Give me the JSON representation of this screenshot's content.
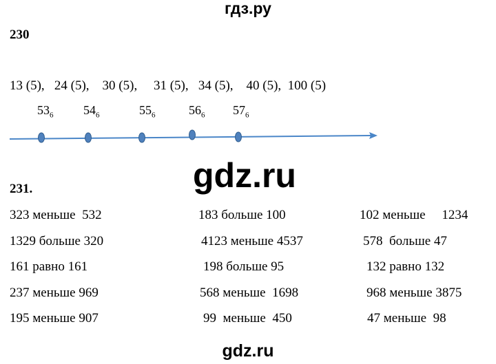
{
  "header": {
    "title": "гдз.ру"
  },
  "task230": {
    "number": "230",
    "list": "13 (5),   24 (5),    30 (5),     31 (5),   34 (5),    40 (5),  100 (5)",
    "points": [
      {
        "base": "53",
        "sub": "6"
      },
      {
        "base": "54",
        "sub": "6"
      },
      {
        "base": "55",
        "sub": "6"
      },
      {
        "base": "56",
        "sub": "6"
      },
      {
        "base": "57",
        "sub": "6"
      }
    ]
  },
  "watermark": "gdz.ru",
  "task231": {
    "number": "231.",
    "rows": [
      [
        "323 меньше  532",
        "183 больше 100",
        "102 меньше     1234"
      ],
      [
        "1329 больше 320",
        "4123 меньше 4537",
        "578  больше 47"
      ],
      [
        "161 равно 161",
        "198 больше 95",
        "132 равно 132"
      ],
      [
        "237 меньше 969",
        "568 меньше  1698",
        "968 меньше 3875"
      ],
      [
        "195 меньше 907",
        "99  меньше  450",
        "47 меньше  98"
      ]
    ]
  },
  "footer": "gdz.ru"
}
